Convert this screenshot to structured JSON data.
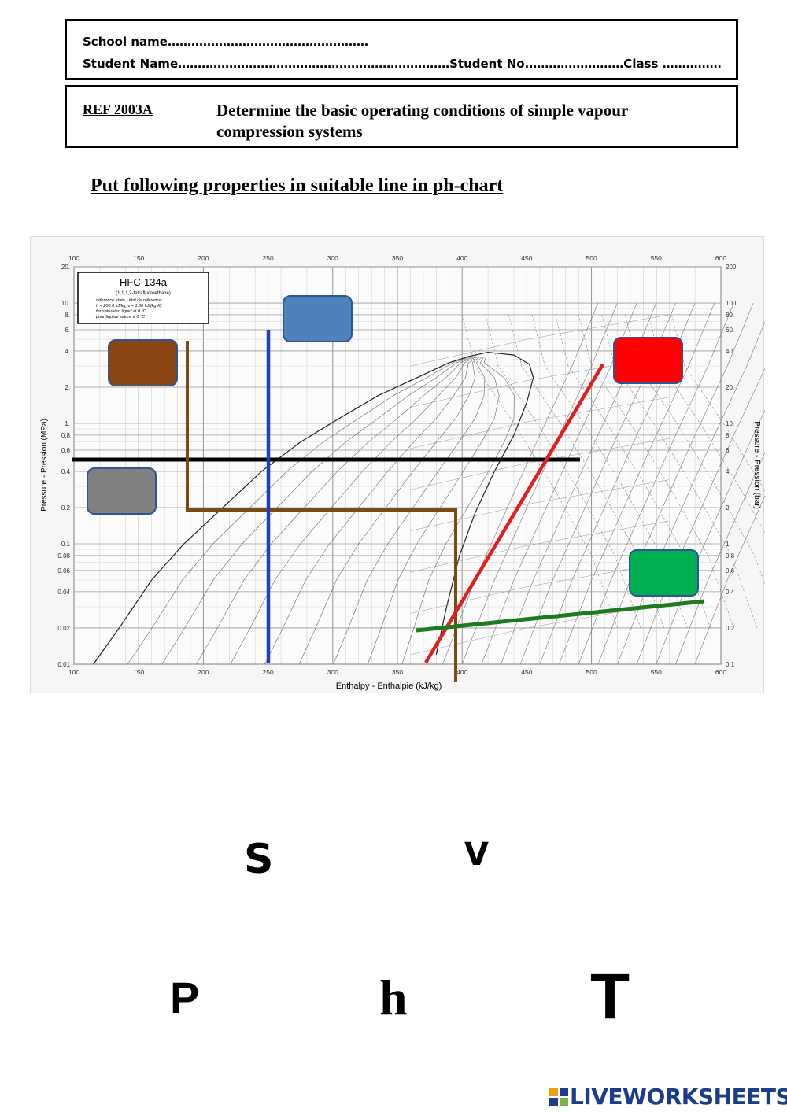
{
  "header": {
    "school_line": "School name……………………………………………",
    "student_line": "Student Name……………………………………………………………Student No.……………………Class ……………"
  },
  "task": {
    "ref_code": "REF 2003A",
    "title": "Determine the basic operating conditions of simple vapour compression systems"
  },
  "instruction": "Put following properties in suitable line in ph-chart",
  "chart": {
    "refrigerant": "HFC-134a",
    "refrigerant_subtitle": "(1,1,1,2-tetrafluoroethane)",
    "reference_lines": [
      "reference state - état de référence:",
      "h = 200.0 kJ/kg,  s = 1.00 kJ/(kg·K)",
      "for saturated liquid at 0 °C",
      "pour liquide saturé à 0 °C"
    ],
    "x_label": "Enthalpy - Enthalpie (kJ/kg)",
    "y_left_label": "Pressure - Pression (MPa)",
    "y_right_label": "Pressure - Pression (bar)",
    "x_ticks": [
      "100",
      "150",
      "200",
      "250",
      "300",
      "350",
      "400",
      "450",
      "500",
      "550",
      "600"
    ],
    "y_left_ticks": [
      "20.",
      "10.",
      "8.",
      "6.",
      "4.",
      "2.",
      "1.",
      "0.8",
      "0.6",
      "0.4",
      "0.2",
      "0.1",
      "0.08",
      "0.06",
      "0.04",
      "0.02",
      "0.01"
    ],
    "y_right_ticks": [
      "200.",
      "100.",
      "80.",
      "60.",
      "40.",
      "20.",
      "10.",
      "8.",
      "6.",
      "4.",
      "2.",
      "1.",
      "0.8",
      "0.6",
      "0.4",
      "0.2",
      "0.1"
    ],
    "answer_boxes": [
      {
        "id": "brown",
        "color": "#8B4513"
      },
      {
        "id": "blue",
        "color": "#4F81BD"
      },
      {
        "id": "red",
        "color": "#FF0000"
      },
      {
        "id": "gray",
        "color": "#808080"
      },
      {
        "id": "green",
        "color": "#00B050"
      }
    ],
    "line_colors": {
      "pressure": "#000000",
      "temperature": "#7B4A12",
      "enthalpy": "#1F3FBF",
      "entropy": "#E02020",
      "volume": "#1E7A1E"
    }
  },
  "choices": {
    "s": "S",
    "v": "V",
    "p": "P",
    "h": "h",
    "t": "T"
  },
  "footer": {
    "brand": "LIVEWORKSHEETS"
  }
}
